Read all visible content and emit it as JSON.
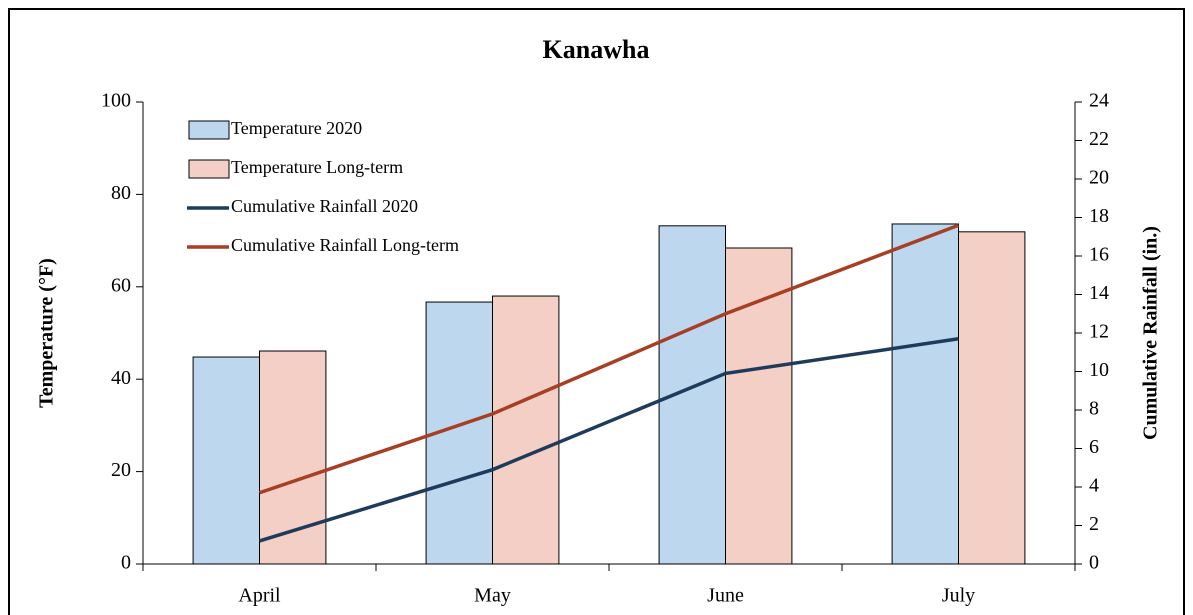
{
  "chart_data": {
    "type": "combo",
    "title": "Kanawha",
    "categories": [
      "April",
      "May",
      "June",
      "July"
    ],
    "ylabel": "Temperature (°F)",
    "y2label": "Cumulative Rainfall (in.)",
    "ylim": [
      0,
      100
    ],
    "yticks": [
      0,
      20,
      40,
      60,
      80,
      100
    ],
    "y2lim": [
      0,
      24
    ],
    "y2ticks": [
      0,
      2,
      4,
      6,
      8,
      10,
      12,
      14,
      16,
      18,
      20,
      22,
      24
    ],
    "legend": "upper left",
    "series": [
      {
        "name": "Temperature 2020",
        "type": "bar",
        "color": "#bdd7ee",
        "values": [
          44.8,
          56.7,
          73.2,
          73.6
        ]
      },
      {
        "name": "Temperature Long-term",
        "type": "bar",
        "color": "#f4cfc5",
        "values": [
          46.1,
          58.0,
          68.4,
          71.9
        ]
      },
      {
        "name": "Cumulative Rainfall 2020",
        "type": "line",
        "axis": "y2",
        "color": "#1f3b5c",
        "values": [
          1.2,
          4.9,
          9.9,
          11.7
        ]
      },
      {
        "name": "Cumulative Rainfall Long-term",
        "type": "line",
        "axis": "y2",
        "color": "#a63f24",
        "values": [
          3.7,
          7.8,
          13.0,
          17.6
        ]
      }
    ]
  }
}
